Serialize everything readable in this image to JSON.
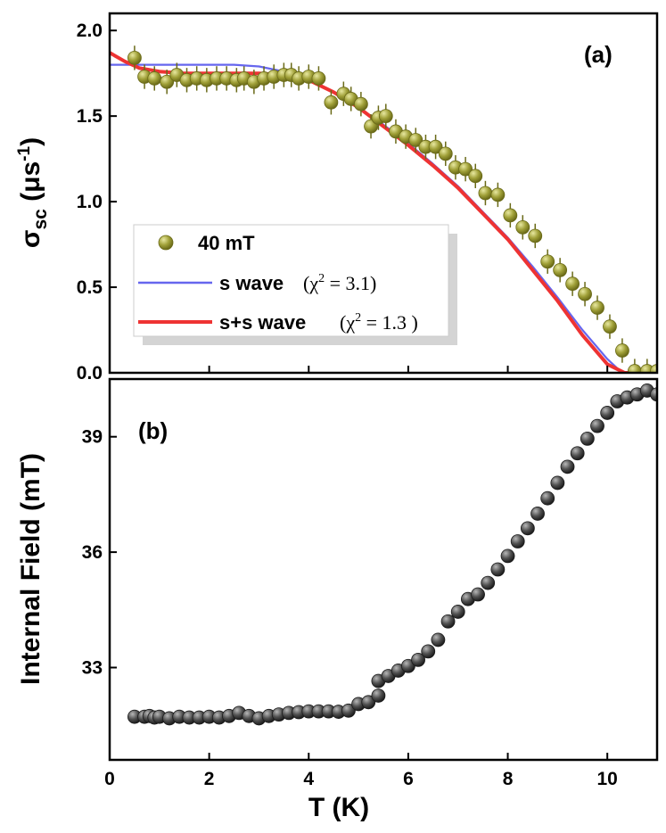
{
  "chart_data": [
    {
      "panel": "(a)",
      "type": "scatter",
      "ylabel": "σsc (μs-1)",
      "ylabel_main": "σ",
      "ylabel_sub": "sc",
      "ylabel_unit_open": " (μs",
      "ylabel_unit_sup": "-1",
      "ylabel_unit_close": ")",
      "xlim": [
        0,
        11
      ],
      "ylim": [
        0,
        2.1
      ],
      "yticks": [
        "0.0",
        "0.5",
        "1.0",
        "1.5",
        "2.0"
      ],
      "yticks_values": [
        0,
        0.5,
        1.0,
        1.5,
        2.0
      ],
      "legend_position": "lower-left",
      "legend": {
        "points": "40 mT",
        "s_wave": "s wave",
        "s_wave_chi": "(χ2 = 3.1)",
        "ss_wave": "s+s wave",
        "ss_wave_chi": "(χ2 = 1.3 )"
      },
      "colors": {
        "points": "#9a9a30",
        "s_wave": "#6666ee",
        "ss_wave": "#ee3333"
      },
      "series": [
        {
          "name": "40 mT",
          "kind": "points",
          "x": [
            0.5,
            0.7,
            0.9,
            1.15,
            1.35,
            1.55,
            1.75,
            1.95,
            2.15,
            2.35,
            2.55,
            2.7,
            2.9,
            3.1,
            3.3,
            3.5,
            3.65,
            3.8,
            4.0,
            4.2,
            4.45,
            4.7,
            4.85,
            5.05,
            5.25,
            5.4,
            5.55,
            5.75,
            5.95,
            6.15,
            6.35,
            6.55,
            6.75,
            6.95,
            7.15,
            7.35,
            7.55,
            7.8,
            8.05,
            8.3,
            8.55,
            8.8,
            9.05,
            9.3,
            9.55,
            9.8,
            10.05,
            10.3,
            10.55,
            10.8,
            11.0
          ],
          "y": [
            1.84,
            1.73,
            1.72,
            1.7,
            1.74,
            1.71,
            1.72,
            1.71,
            1.72,
            1.72,
            1.71,
            1.72,
            1.7,
            1.72,
            1.73,
            1.74,
            1.74,
            1.72,
            1.73,
            1.72,
            1.58,
            1.63,
            1.6,
            1.57,
            1.44,
            1.49,
            1.5,
            1.41,
            1.38,
            1.36,
            1.32,
            1.32,
            1.28,
            1.2,
            1.19,
            1.15,
            1.05,
            1.04,
            0.92,
            0.85,
            0.8,
            0.65,
            0.6,
            0.52,
            0.46,
            0.38,
            0.27,
            0.13,
            0.01,
            0.01,
            0.01
          ],
          "err": 0.04
        },
        {
          "name": "s wave",
          "kind": "line",
          "x": [
            0,
            1,
            2,
            2.5,
            3,
            3.5,
            4,
            4.5,
            5,
            5.5,
            6,
            6.5,
            7,
            7.5,
            8,
            8.5,
            9,
            9.5,
            10,
            10.3,
            11
          ],
          "y": [
            1.8,
            1.8,
            1.8,
            1.8,
            1.79,
            1.76,
            1.71,
            1.64,
            1.55,
            1.45,
            1.34,
            1.22,
            1.09,
            0.94,
            0.79,
            0.62,
            0.44,
            0.25,
            0.08,
            0.0,
            0.0
          ]
        },
        {
          "name": "s+s wave",
          "kind": "line",
          "x": [
            0,
            0.3,
            0.6,
            1,
            1.5,
            2,
            2.5,
            3,
            3.5,
            4,
            4.5,
            5,
            5.5,
            6,
            6.5,
            7,
            7.5,
            8,
            8.5,
            9,
            9.5,
            10,
            10.35,
            11
          ],
          "y": [
            1.87,
            1.82,
            1.78,
            1.76,
            1.75,
            1.75,
            1.75,
            1.75,
            1.74,
            1.71,
            1.64,
            1.55,
            1.44,
            1.33,
            1.21,
            1.08,
            0.93,
            0.78,
            0.6,
            0.42,
            0.22,
            0.05,
            0.0,
            0.0
          ]
        }
      ]
    },
    {
      "panel": "(b)",
      "type": "scatter",
      "xlabel": "T (K)",
      "ylabel": "Internal Field (mT)",
      "xlim": [
        0,
        11
      ],
      "ylim": [
        30.6,
        40.5
      ],
      "xticks": [
        "0",
        "2",
        "4",
        "6",
        "8",
        "10"
      ],
      "xticks_values": [
        0,
        2,
        4,
        6,
        8,
        10
      ],
      "yticks": [
        "33",
        "36",
        "39"
      ],
      "yticks_values": [
        33,
        36,
        39
      ],
      "colors": {
        "points": "#444444"
      },
      "series": [
        {
          "kind": "points",
          "x": [
            0.5,
            0.7,
            0.8,
            0.9,
            1.0,
            1.2,
            1.4,
            1.6,
            1.8,
            2.0,
            2.2,
            2.4,
            2.6,
            2.8,
            3.0,
            3.2,
            3.4,
            3.6,
            3.8,
            4.0,
            4.2,
            4.4,
            4.6,
            4.8,
            5.0,
            5.2,
            5.4,
            5.4,
            5.6,
            5.8,
            6.0,
            6.2,
            6.4,
            6.6,
            6.8,
            7.0,
            7.2,
            7.4,
            7.6,
            7.8,
            8.0,
            8.2,
            8.4,
            8.6,
            8.8,
            9.0,
            9.2,
            9.4,
            9.6,
            9.8,
            10.0,
            10.2,
            10.4,
            10.6,
            10.8,
            11.0
          ],
          "y": [
            31.72,
            31.72,
            31.74,
            31.7,
            31.72,
            31.68,
            31.72,
            31.7,
            31.7,
            31.72,
            31.7,
            31.74,
            31.82,
            31.74,
            31.68,
            31.74,
            31.78,
            31.82,
            31.84,
            31.86,
            31.86,
            31.86,
            31.85,
            31.88,
            32.05,
            32.1,
            32.27,
            32.65,
            32.78,
            32.92,
            33.04,
            33.2,
            33.42,
            33.72,
            34.2,
            34.45,
            34.78,
            34.9,
            35.2,
            35.55,
            35.9,
            36.28,
            36.62,
            37.0,
            37.4,
            37.8,
            38.22,
            38.57,
            38.95,
            39.28,
            39.62,
            39.92,
            40.02,
            40.1,
            40.2,
            40.1
          ]
        }
      ]
    }
  ]
}
